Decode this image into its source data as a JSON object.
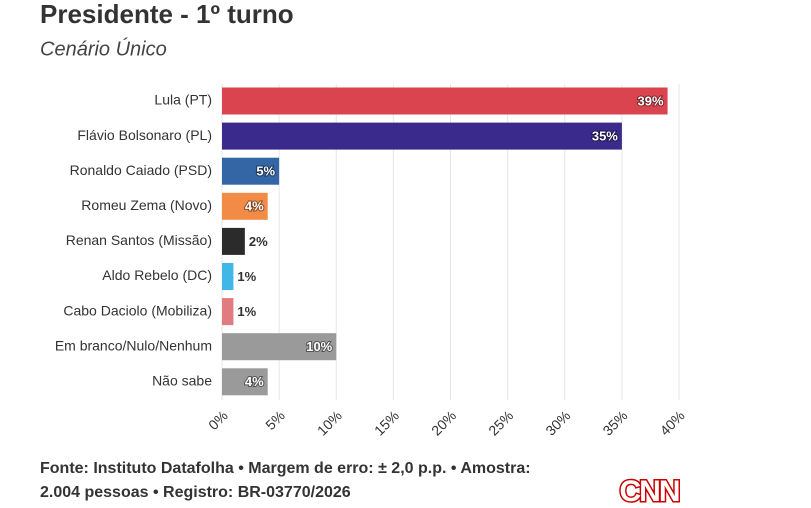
{
  "chart_data": {
    "type": "hbar",
    "title": "Presidente - 1º turno",
    "subtitle": "Cenário Único",
    "categories": [
      "Lula (PT)",
      "Flávio Bolsonaro (PL)",
      "Ronaldo Caiado (PSD)",
      "Romeu Zema (Novo)",
      "Renan Santos (Missão)",
      "Aldo Rebelo (DC)",
      "Cabo Daciolo (Mobiliza)",
      "Em branco/Nulo/Nenhum",
      "Não sabe"
    ],
    "values": [
      39,
      35,
      5,
      4,
      2,
      1,
      1,
      10,
      4
    ],
    "value_labels": [
      "39%",
      "35%",
      "5%",
      "4%",
      "2%",
      "1%",
      "1%",
      "10%",
      "4%"
    ],
    "colors": [
      "#d9444f",
      "#3a2a8c",
      "#3465a4",
      "#f28b45",
      "#2b2b2b",
      "#3fb8e8",
      "#e07b80",
      "#9a9a9a",
      "#9a9a9a"
    ],
    "xlim": [
      0,
      40
    ],
    "xticks": [
      {
        "value": 0,
        "label": "0%"
      },
      {
        "value": 5,
        "label": "5%"
      },
      {
        "value": 10,
        "label": "10%"
      },
      {
        "value": 15,
        "label": "15%"
      },
      {
        "value": 20,
        "label": "20%"
      },
      {
        "value": 25,
        "label": "25%"
      },
      {
        "value": 30,
        "label": "30%"
      },
      {
        "value": 35,
        "label": "35%"
      },
      {
        "value": 40,
        "label": "40%"
      }
    ],
    "grid": true,
    "footer": [
      "Fonte: Instituto Datafolha • Margem de erro: ± 2,0 p.p. • Amostra:",
      "2.004 pessoas • Registro: BR-03770/2026"
    ],
    "logo": "CNN"
  }
}
